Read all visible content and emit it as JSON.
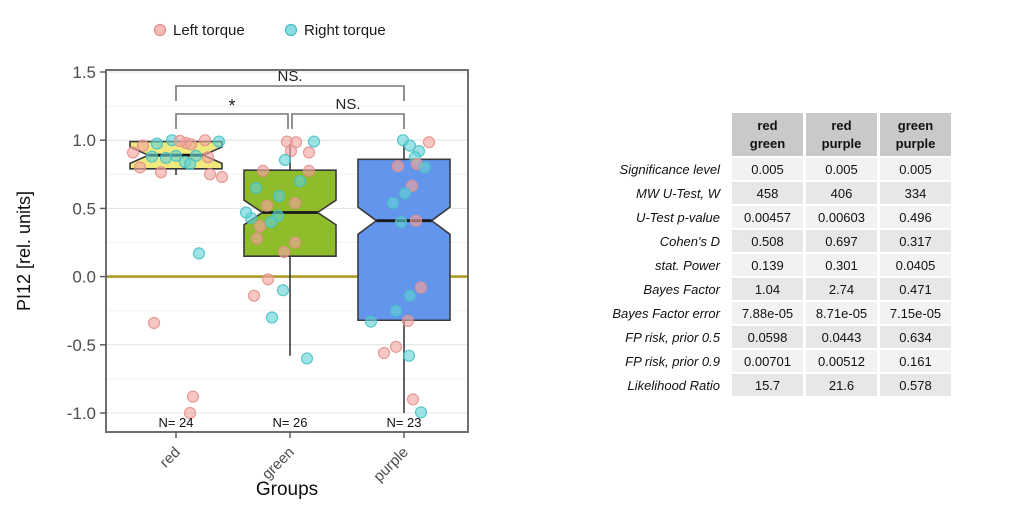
{
  "legend": {
    "items": [
      {
        "label": "Left torque",
        "fill": "#F4A49E",
        "stroke": "#E18E89"
      },
      {
        "label": "Right torque",
        "fill": "#63D2D6",
        "stroke": "#45BFC4"
      }
    ]
  },
  "chart_data": {
    "type": "boxplot-jitter",
    "title": "",
    "ylabel": "PI12 [rel. units]",
    "xlabel": "Groups",
    "ylim": [
      -1.15,
      1.52
    ],
    "yticks": [
      1.5,
      1.0,
      0.5,
      0.0,
      -0.5,
      -1.0
    ],
    "ytick_labels": [
      "1.5",
      "1.0",
      "0.5",
      "0.0",
      "-0.5",
      "-1.0"
    ],
    "minor_ticks": [
      1.25,
      0.75,
      0.25,
      -0.25,
      -0.75
    ],
    "grid_on": true,
    "zero_line": {
      "value": 0.0,
      "color": "#AB9B26"
    },
    "panel_border_color": "#6F6F6F",
    "grid_major_color": "#E4E4E4",
    "grid_minor_color": "#F1F1F1",
    "box_edge_color": "#3A3A3A",
    "median_color": "#1A1A1A",
    "whisker_color": "#3A3A3A",
    "bracket_color": "#777777",
    "point_radius": 5.5,
    "point_colors": {
      "L": {
        "fill": "#F4A49E",
        "stroke": "#E18E89"
      },
      "R": {
        "fill": "#63D2D6",
        "stroke": "#45BFC4"
      }
    },
    "groups": [
      {
        "label": "red",
        "n_label": "N= 24",
        "fill": "#EFE97E",
        "median": 0.89,
        "q1": 0.79,
        "q3": 0.99,
        "notch_low": 0.83,
        "notch_high": 0.95,
        "whisker_low": 0.745,
        "whisker_high": null,
        "points": [
          [
            133,
            0.91,
            "L"
          ],
          [
            143,
            0.96,
            "L"
          ],
          [
            157,
            0.975,
            "R"
          ],
          [
            172,
            1.0,
            "R"
          ],
          [
            186,
            0.98,
            "L"
          ],
          [
            191,
            0.97,
            "L"
          ],
          [
            205,
            1.0,
            "L"
          ],
          [
            219,
            0.99,
            "R"
          ],
          [
            180,
            0.995,
            "L"
          ],
          [
            152,
            0.88,
            "R"
          ],
          [
            176,
            0.885,
            "R"
          ],
          [
            196,
            0.885,
            "R"
          ],
          [
            208,
            0.875,
            "L"
          ],
          [
            166,
            0.87,
            "R"
          ],
          [
            185,
            0.84,
            "R"
          ],
          [
            190,
            0.825,
            "R"
          ],
          [
            140,
            0.8,
            "L"
          ],
          [
            161,
            0.765,
            "L"
          ],
          [
            210,
            0.75,
            "L"
          ],
          [
            222,
            0.73,
            "L"
          ],
          [
            199,
            0.17,
            "R"
          ],
          [
            154,
            -0.34,
            "L"
          ],
          [
            193,
            -0.88,
            "L"
          ],
          [
            190,
            -1.0,
            "L"
          ]
        ]
      },
      {
        "label": "green",
        "n_label": "N= 26",
        "fill": "#8FBC2B",
        "median": 0.47,
        "q1": 0.15,
        "q3": 0.78,
        "notch_low": 0.38,
        "notch_high": 0.56,
        "whisker_low": -0.58,
        "whisker_high": 0.97,
        "points": [
          [
            287,
            0.99,
            "L"
          ],
          [
            296,
            0.985,
            "L"
          ],
          [
            314,
            0.99,
            "R"
          ],
          [
            291,
            0.92,
            "L"
          ],
          [
            309,
            0.91,
            "L"
          ],
          [
            285,
            0.855,
            "R"
          ],
          [
            263,
            0.775,
            "L"
          ],
          [
            309,
            0.775,
            "L"
          ],
          [
            256,
            0.65,
            "R"
          ],
          [
            300,
            0.7,
            "R"
          ],
          [
            279,
            0.59,
            "R"
          ],
          [
            267,
            0.52,
            "L"
          ],
          [
            295,
            0.54,
            "L"
          ],
          [
            251,
            0.43,
            "R"
          ],
          [
            278,
            0.445,
            "R"
          ],
          [
            246,
            0.47,
            "R"
          ],
          [
            260,
            0.37,
            "L"
          ],
          [
            271,
            0.4,
            "R"
          ],
          [
            257,
            0.28,
            "L"
          ],
          [
            295,
            0.25,
            "L"
          ],
          [
            284,
            0.18,
            "L"
          ],
          [
            268,
            -0.02,
            "L"
          ],
          [
            254,
            -0.14,
            "L"
          ],
          [
            283,
            -0.1,
            "R"
          ],
          [
            272,
            -0.3,
            "R"
          ],
          [
            307,
            -0.6,
            "R"
          ]
        ]
      },
      {
        "label": "purple",
        "n_label": "N= 23",
        "fill": "#6495ED",
        "median": 0.41,
        "q1": -0.32,
        "q3": 0.86,
        "notch_low": 0.31,
        "notch_high": 0.51,
        "whisker_low": -1.0,
        "whisker_high": 0.97,
        "points": [
          [
            403,
            1.0,
            "R"
          ],
          [
            410,
            0.96,
            "R"
          ],
          [
            429,
            0.985,
            "L"
          ],
          [
            419,
            0.92,
            "R"
          ],
          [
            415,
            0.875,
            "R"
          ],
          [
            398,
            0.81,
            "L"
          ],
          [
            417,
            0.825,
            "L"
          ],
          [
            425,
            0.8,
            "R"
          ],
          [
            412,
            0.665,
            "L"
          ],
          [
            405,
            0.61,
            "R"
          ],
          [
            393,
            0.54,
            "R"
          ],
          [
            416,
            0.41,
            "L"
          ],
          [
            401,
            0.4,
            "R"
          ],
          [
            421,
            -0.08,
            "L"
          ],
          [
            410,
            -0.14,
            "R"
          ],
          [
            396,
            -0.25,
            "R"
          ],
          [
            408,
            -0.325,
            "L"
          ],
          [
            371,
            -0.33,
            "R"
          ],
          [
            384,
            -0.56,
            "L"
          ],
          [
            396,
            -0.515,
            "L"
          ],
          [
            409,
            -0.58,
            "R"
          ],
          [
            413,
            -0.9,
            "L"
          ],
          [
            421,
            -0.995,
            "R"
          ]
        ]
      }
    ],
    "brackets": [
      {
        "from": 0,
        "to": 2,
        "label": "NS.",
        "style": "ns"
      },
      {
        "from": 0,
        "to": 1,
        "label": "*",
        "style": "star"
      },
      {
        "from": 1,
        "to": 2,
        "label": "NS.",
        "style": "ns"
      }
    ]
  },
  "table": {
    "col_headers": [
      [
        "red",
        "green"
      ],
      [
        "red",
        "purple"
      ],
      [
        "green",
        "purple"
      ]
    ],
    "rows": [
      {
        "label": "Significance level",
        "values": [
          "0.005",
          "0.005",
          "0.005"
        ]
      },
      {
        "label": "MW U-Test, W",
        "values": [
          "458",
          "406",
          "334"
        ]
      },
      {
        "label": "U-Test p-value",
        "values": [
          "0.00457",
          "0.00603",
          "0.496"
        ]
      },
      {
        "label": "Cohen's D",
        "values": [
          "0.508",
          "0.697",
          "0.317"
        ]
      },
      {
        "label": "stat. Power",
        "values": [
          "0.139",
          "0.301",
          "0.0405"
        ]
      },
      {
        "label": "Bayes Factor",
        "values": [
          "1.04",
          "2.74",
          "0.471"
        ]
      },
      {
        "label": "Bayes Factor error",
        "values": [
          "7.88e-05",
          "8.71e-05",
          "7.15e-05"
        ]
      },
      {
        "label": "FP risk, prior 0.5",
        "values": [
          "0.0598",
          "0.0443",
          "0.634"
        ]
      },
      {
        "label": "FP risk, prior 0.9",
        "values": [
          "0.00701",
          "0.00512",
          "0.161"
        ]
      },
      {
        "label": "Likelihood Ratio",
        "values": [
          "15.7",
          "21.6",
          "0.578"
        ]
      }
    ],
    "header_bg": "#C9C9C9",
    "row_bg_odd": "#F2F2F2",
    "row_bg_even": "#E7E7E7"
  }
}
